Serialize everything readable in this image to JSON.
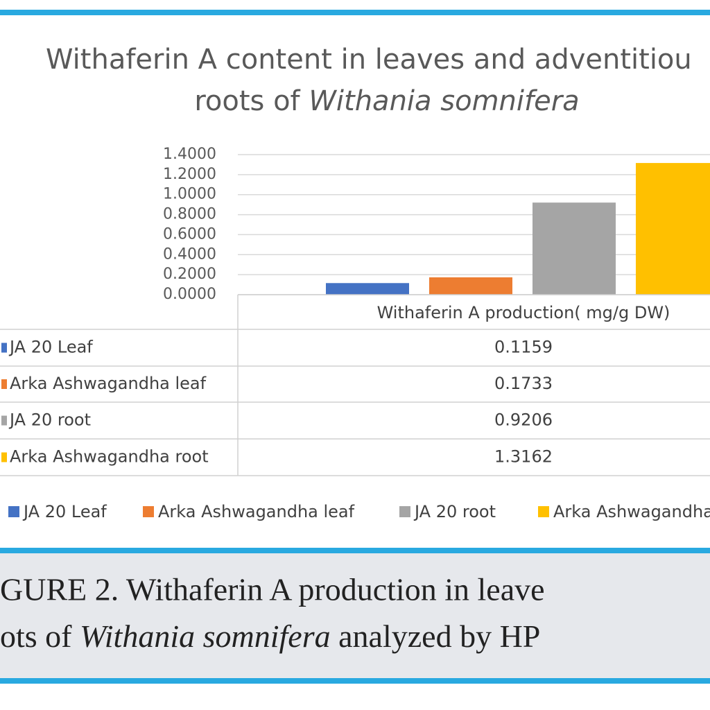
{
  "chart_data": {
    "type": "bar",
    "title_lines": [
      "Withaferin A content in leaves and adventitiou",
      "roots of ",
      "Withania somnifera"
    ],
    "categories": [
      "Withaferin A production( mg/g DW)"
    ],
    "series": [
      {
        "name": "JA 20 Leaf",
        "color": "#4472c4",
        "values": [
          0.1159
        ]
      },
      {
        "name": "Arka Ashwagandha leaf",
        "color": "#ed7d31",
        "values": [
          0.1733
        ]
      },
      {
        "name": "JA 20 root",
        "color": "#a5a5a5",
        "values": [
          0.9206
        ]
      },
      {
        "name": "Arka Ashwagandha root",
        "color": "#ffc000",
        "values": [
          1.3162
        ]
      }
    ],
    "ylim": [
      0,
      1.4
    ],
    "yticks": [
      {
        "value": 0,
        "label": "0.0000"
      },
      {
        "value": 0.2,
        "label": "0.2000"
      },
      {
        "value": 0.4,
        "label": "0.4000"
      },
      {
        "value": 0.6,
        "label": "0.6000"
      },
      {
        "value": 0.8,
        "label": "0.8000"
      },
      {
        "value": 1.0,
        "label": "1.0000"
      },
      {
        "value": 1.2,
        "label": "1.2000"
      },
      {
        "value": 1.4,
        "label": "1.4000"
      }
    ],
    "grid": true,
    "data_table": true,
    "legend": "bottom"
  },
  "caption": [
    "GURE 2. Withaferin A production in leave",
    "ots of ",
    "Withania somnifera",
    " analyzed by HP"
  ]
}
